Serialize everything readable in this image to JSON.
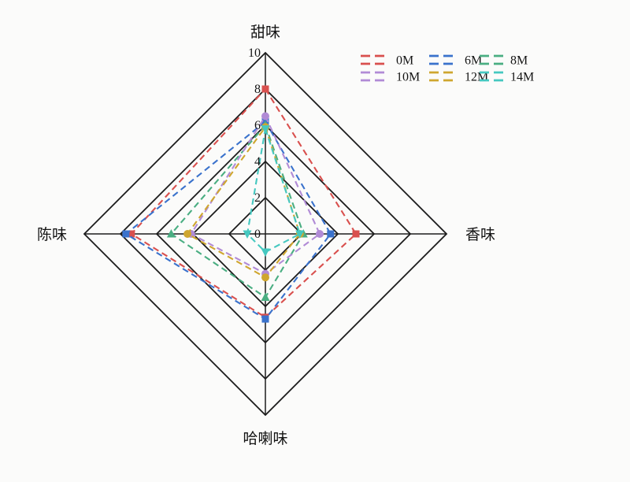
{
  "page": {
    "background_color": "#fbfbfa"
  },
  "chart_data": {
    "type": "radar",
    "shape": "diamond-4-axis",
    "axes": [
      {
        "label": "甜味",
        "position": "top"
      },
      {
        "label": "香味",
        "position": "right"
      },
      {
        "label": "哈喇味",
        "position": "bottom"
      },
      {
        "label": "陈味",
        "position": "left"
      }
    ],
    "r_ticks": [
      0,
      2,
      4,
      6,
      8,
      10
    ],
    "r_max": 10,
    "grid_rings": [
      2,
      4,
      6,
      8,
      10
    ],
    "grid_color": "#1c1c1c",
    "line_style": "dashed",
    "legend_position": "top-right",
    "legend_rows": 2,
    "legend_cols": 3,
    "values_order": "甜味(top), 香味(right), 哈喇味(bottom), 陈味(left)",
    "series": [
      {
        "name": "0M",
        "color": "#d9504e",
        "marker": "square",
        "values": [
          8.0,
          5.0,
          4.6,
          7.4
        ]
      },
      {
        "name": "6M",
        "color": "#3a72cc",
        "marker": "square",
        "values": [
          6.2,
          3.6,
          4.7,
          7.7
        ]
      },
      {
        "name": "8M",
        "color": "#4aae82",
        "marker": "triangle-up",
        "values": [
          6.0,
          2.1,
          3.5,
          5.2
        ]
      },
      {
        "name": "10M",
        "color": "#b18bd6",
        "marker": "circle",
        "values": [
          6.5,
          3.0,
          2.2,
          4.1
        ]
      },
      {
        "name": "12M",
        "color": "#cfa62f",
        "marker": "circle",
        "values": [
          5.9,
          1.9,
          2.4,
          4.3
        ]
      },
      {
        "name": "14M",
        "color": "#45c8c0",
        "marker": "triangle-down",
        "values": [
          5.8,
          1.9,
          1.0,
          1.0
        ]
      }
    ]
  }
}
